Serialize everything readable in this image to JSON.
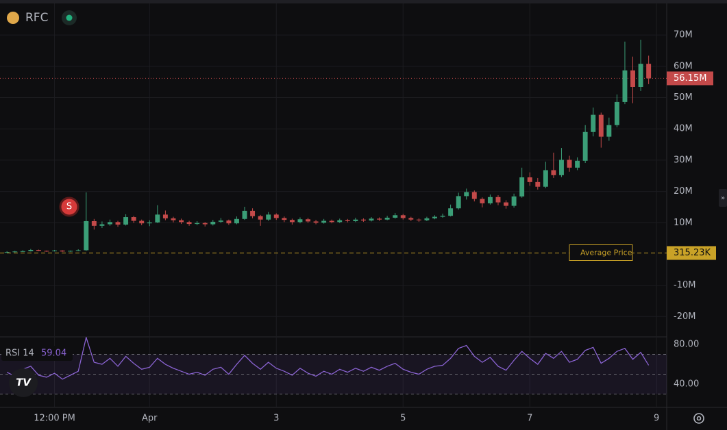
{
  "chart_data": {
    "type": "candlestick",
    "symbol": "RFC",
    "marker": "S",
    "x": [
      -1.25,
      -1.125,
      -1,
      -0.875,
      -0.75,
      -0.625,
      -0.5,
      -0.375,
      -0.25,
      -0.125,
      0,
      0.125,
      0.25,
      0.375,
      0.5,
      0.625,
      0.75,
      0.875,
      1,
      1.125,
      1.25,
      1.375,
      1.5,
      1.625,
      1.75,
      1.875,
      2,
      2.125,
      2.25,
      2.375,
      2.5,
      2.625,
      2.75,
      2.875,
      3,
      3.125,
      3.25,
      3.375,
      3.5,
      3.625,
      3.75,
      3.875,
      4,
      4.125,
      4.25,
      4.375,
      4.5,
      4.625,
      4.75,
      4.875,
      5,
      5.125,
      5.25,
      5.375,
      5.5,
      5.625,
      5.75,
      5.875,
      6,
      6.125,
      6.25,
      6.375,
      6.5,
      6.625,
      6.75,
      6.875,
      7,
      7.125,
      7.25,
      7.375,
      7.5,
      7.625,
      7.75,
      7.875,
      8,
      8.125,
      8.25,
      8.375,
      8.5,
      8.625,
      8.75,
      8.875
    ],
    "open": [
      0.5,
      0.6,
      0.8,
      0.9,
      1.3,
      1.0,
      0.9,
      1.1,
      0.8,
      1.0,
      1.2,
      10.5,
      9.0,
      9.5,
      10.2,
      9.4,
      11.8,
      10.6,
      9.8,
      10.1,
      12.6,
      11.4,
      10.8,
      10.2,
      9.6,
      9.9,
      9.5,
      10.3,
      10.7,
      9.8,
      11.2,
      13.8,
      12.1,
      11.0,
      12.6,
      11.5,
      10.9,
      10.2,
      11.1,
      10.4,
      10.0,
      10.6,
      10.2,
      10.8,
      10.5,
      11.0,
      10.7,
      11.3,
      11.0,
      11.6,
      12.4,
      11.5,
      11.0,
      10.8,
      11.4,
      11.9,
      12.2,
      14.6,
      18.5,
      19.8,
      17.6,
      16.2,
      18.2,
      16.5,
      15.4,
      18.4,
      24.5,
      23.0,
      21.5,
      26.8,
      25.2,
      30.1,
      27.6,
      29.8,
      39.0,
      44.5,
      37.5,
      41.2,
      48.6,
      58.7,
      53.4,
      60.8
    ],
    "high": [
      0.9,
      1.0,
      1.2,
      1.6,
      1.4,
      1.1,
      1.3,
      1.2,
      1.1,
      1.5,
      19.7,
      11.2,
      10.4,
      11.0,
      10.6,
      12.7,
      12.2,
      11.0,
      10.8,
      15.6,
      13.9,
      11.9,
      11.3,
      10.6,
      10.5,
      10.2,
      10.9,
      11.5,
      11.0,
      12.0,
      15.1,
      14.6,
      12.5,
      13.4,
      13.0,
      12.0,
      11.3,
      11.7,
      11.6,
      10.9,
      11.2,
      11.0,
      11.3,
      11.2,
      11.6,
      11.4,
      11.8,
      11.7,
      12.2,
      13.1,
      12.8,
      11.9,
      11.4,
      11.9,
      12.4,
      12.9,
      15.8,
      19.6,
      20.9,
      20.3,
      18.1,
      19.0,
      18.8,
      17.2,
      19.3,
      27.6,
      26.1,
      24.3,
      29.5,
      32.4,
      33.9,
      31.4,
      30.9,
      41.2,
      46.8,
      45.2,
      43.6,
      51.0,
      67.9,
      63.1,
      68.5,
      63.4
    ],
    "low": [
      0.4,
      0.5,
      0.7,
      0.8,
      0.9,
      0.7,
      0.8,
      0.7,
      0.7,
      0.9,
      1.0,
      7.8,
      8.3,
      9.0,
      8.7,
      9.1,
      9.9,
      9.2,
      8.9,
      9.9,
      10.8,
      10.1,
      9.6,
      9.0,
      9.2,
      8.8,
      9.1,
      9.9,
      9.3,
      9.5,
      10.9,
      11.4,
      9.0,
      10.6,
      10.9,
      10.2,
      9.4,
      9.8,
      9.9,
      9.5,
      9.7,
      9.8,
      9.9,
      10.1,
      10.2,
      10.3,
      10.4,
      10.6,
      10.8,
      11.3,
      11.0,
      10.5,
      10.3,
      10.5,
      11.1,
      11.6,
      12.0,
      14.2,
      17.4,
      16.8,
      14.9,
      15.8,
      15.6,
      14.5,
      14.8,
      18.0,
      21.8,
      20.6,
      21.0,
      24.3,
      24.6,
      26.3,
      26.8,
      29.1,
      37.6,
      34.0,
      36.2,
      40.5,
      47.9,
      48.2,
      52.1,
      54.3
    ],
    "close": [
      0.6,
      0.8,
      0.9,
      1.3,
      1.0,
      0.9,
      1.1,
      0.8,
      1.0,
      1.2,
      10.5,
      9.0,
      9.5,
      10.2,
      9.4,
      11.8,
      10.6,
      9.8,
      10.1,
      12.6,
      11.4,
      10.8,
      10.2,
      9.6,
      9.9,
      9.5,
      10.3,
      10.7,
      9.8,
      11.2,
      13.8,
      12.1,
      11.0,
      12.6,
      11.5,
      10.9,
      10.2,
      11.1,
      10.4,
      10.0,
      10.6,
      10.2,
      10.8,
      10.5,
      11.0,
      10.7,
      11.3,
      11.0,
      11.6,
      12.4,
      11.5,
      11.0,
      10.8,
      11.4,
      11.9,
      12.2,
      14.6,
      18.5,
      19.8,
      17.6,
      16.2,
      18.2,
      16.5,
      15.4,
      18.4,
      24.5,
      23.0,
      21.5,
      26.8,
      25.2,
      30.1,
      27.6,
      29.8,
      39.0,
      44.5,
      37.5,
      41.2,
      48.6,
      58.7,
      53.4,
      60.8,
      56.15
    ],
    "up_color": "#3b9e77",
    "down_color": "#c44a4a",
    "xlim": [
      -1.36,
      9.16
    ],
    "xticks": [
      {
        "value": -0.5,
        "label": "12:00 PM"
      },
      {
        "value": 1,
        "label": "Apr"
      },
      3,
      5,
      7,
      9
    ],
    "ylim": [
      -26.5,
      81.2
    ],
    "yticks": [
      {
        "value": 70,
        "label": "70M"
      },
      {
        "value": 60,
        "label": "60M"
      },
      {
        "value": 50,
        "label": "50M"
      },
      {
        "value": 40,
        "label": "40M"
      },
      {
        "value": 30,
        "label": "30M"
      },
      {
        "value": 20,
        "label": "20M"
      },
      {
        "value": 10,
        "label": "10M"
      },
      {
        "value": -10,
        "label": "-10M"
      },
      {
        "value": -20,
        "label": "-20M"
      }
    ],
    "grid": true,
    "last_price": {
      "value": 56.15,
      "label": "56.15M",
      "color": "#c44a4a"
    },
    "average_price": {
      "name": "Average Price",
      "value": 0.31523,
      "label": "315.23K",
      "color": "#c9a227"
    },
    "rsi": {
      "name": "RSI 14",
      "color": "#8a63d2",
      "values": [
        52,
        48,
        55,
        58,
        49,
        47,
        51,
        45,
        49,
        53,
        87,
        62,
        60,
        66,
        58,
        68,
        61,
        55,
        57,
        66,
        60,
        56,
        53,
        50,
        52,
        49,
        55,
        57,
        50,
        60,
        69,
        61,
        55,
        62,
        56,
        53,
        49,
        56,
        51,
        48,
        53,
        50,
        55,
        52,
        56,
        53,
        57,
        54,
        58,
        61,
        55,
        52,
        50,
        55,
        58,
        59,
        66,
        76,
        79,
        68,
        62,
        67,
        58,
        54,
        64,
        73,
        66,
        60,
        71,
        66,
        73,
        62,
        65,
        74,
        77,
        61,
        66,
        73,
        76,
        65,
        72,
        59.04
      ],
      "ylim": [
        16.6,
        87.6
      ],
      "yticks": [
        {
          "value": 80,
          "label": "80.00"
        },
        {
          "value": 40,
          "label": "40.00"
        }
      ],
      "levels": [
        70,
        50,
        30
      ]
    }
  }
}
